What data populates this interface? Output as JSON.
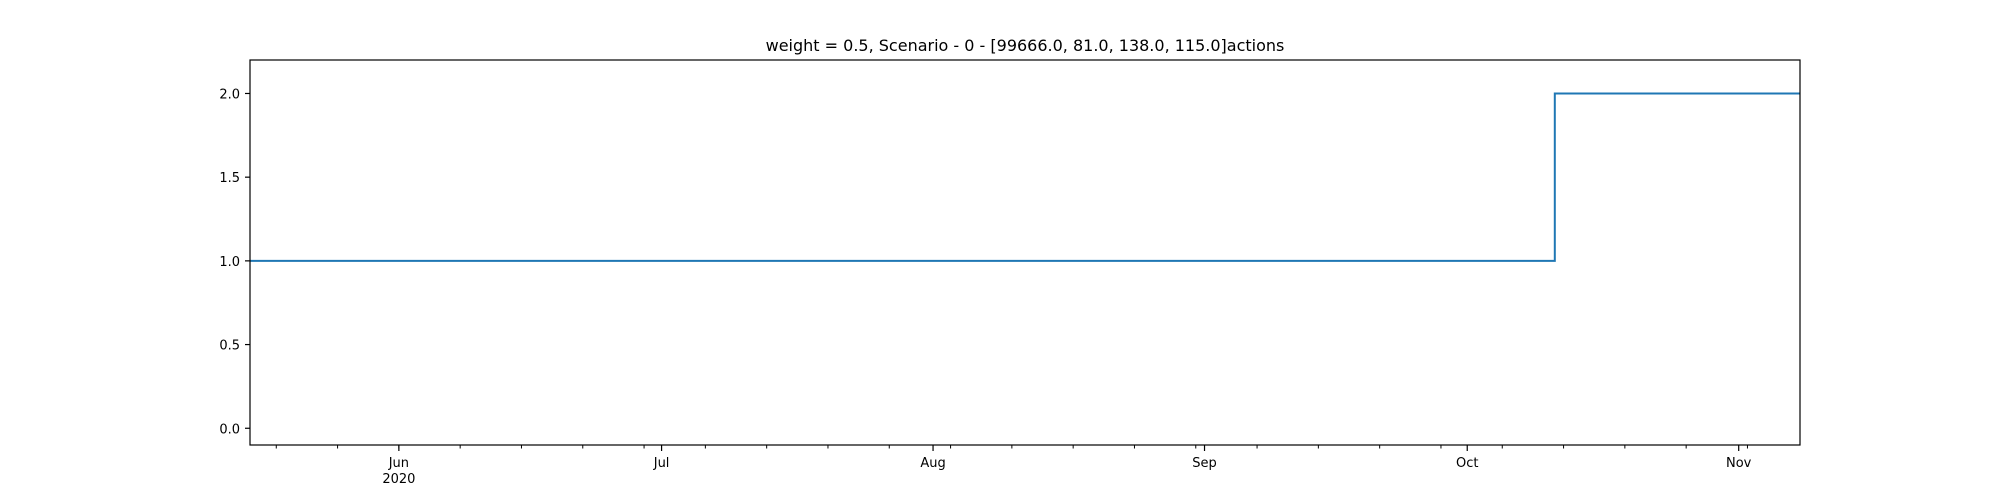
{
  "chart_data": {
    "type": "line",
    "drawstyle": "steps-post",
    "title": "weight = 0.5, Scenario - 0 - [99666.0, 81.0, 138.0, 115.0]actions",
    "xlabel": "",
    "ylabel": "",
    "xlim": [
      "2020-05-15",
      "2020-11-08"
    ],
    "ylim": [
      -0.1,
      2.2
    ],
    "yticks": [
      0.0,
      0.5,
      1.0,
      1.5,
      2.0
    ],
    "ytick_labels": [
      "0.0",
      "0.5",
      "1.0",
      "1.5",
      "2.0"
    ],
    "xticks": [
      {
        "date": "2020-06-01",
        "label": "Jun",
        "sublabel": "2020"
      },
      {
        "date": "2020-07-01",
        "label": "Jul",
        "sublabel": ""
      },
      {
        "date": "2020-08-01",
        "label": "Aug",
        "sublabel": ""
      },
      {
        "date": "2020-09-01",
        "label": "Sep",
        "sublabel": ""
      },
      {
        "date": "2020-10-01",
        "label": "Oct",
        "sublabel": ""
      },
      {
        "date": "2020-11-01",
        "label": "Nov",
        "sublabel": ""
      }
    ],
    "series": [
      {
        "color": "#1f77b4",
        "x": [
          "2020-05-15",
          "2020-10-11",
          "2020-11-08"
        ],
        "y": [
          1.0,
          2.0,
          2.0
        ]
      }
    ],
    "grid": false,
    "legend": false
  }
}
